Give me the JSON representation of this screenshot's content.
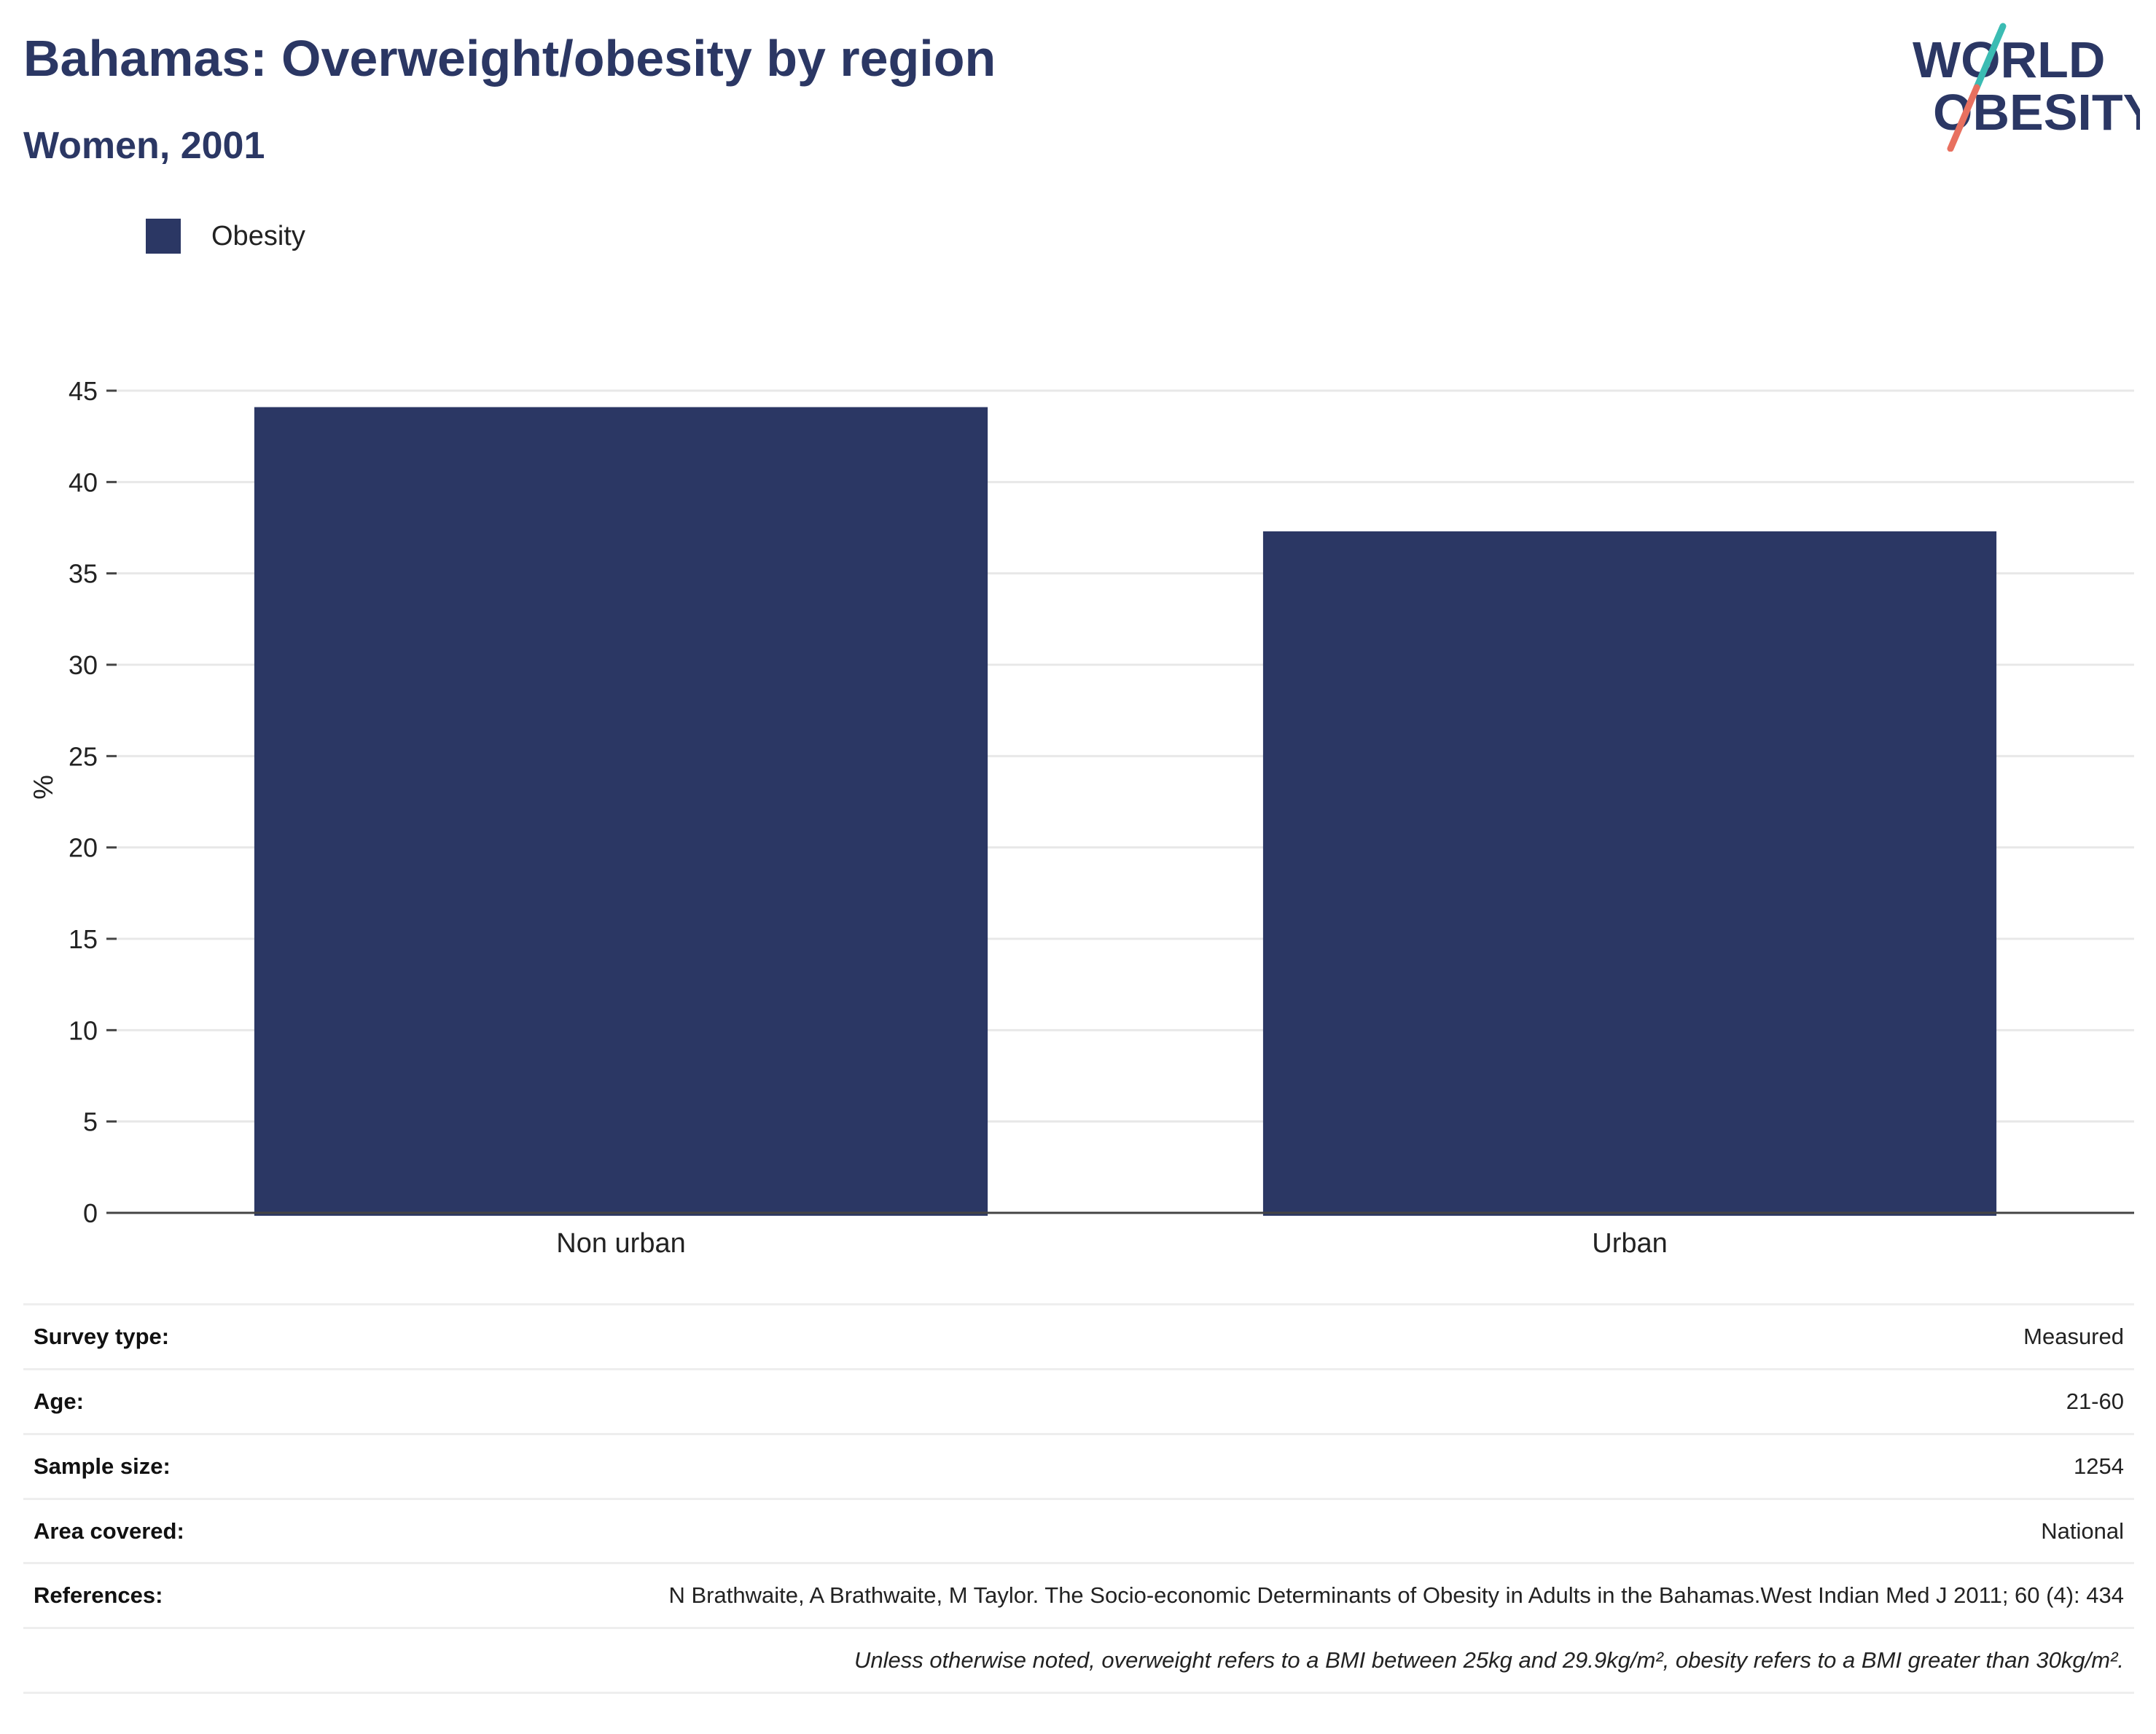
{
  "header": {
    "title": "Bahamas: Overweight/obesity by region",
    "subtitle": "Women, 2001"
  },
  "logo": {
    "line1": "WORLD",
    "line2": "OBESITY",
    "colors": {
      "text": "#2b3764",
      "slash_top": "#3bbcb3",
      "slash_bottom": "#e8705f"
    }
  },
  "legend": {
    "label": "Obesity",
    "color": "#2b3764"
  },
  "chart_data": {
    "type": "bar",
    "categories": [
      "Non urban",
      "Urban"
    ],
    "series": [
      {
        "name": "Obesity",
        "values": [
          44.1,
          37.3
        ],
        "color": "#2b3764"
      }
    ],
    "title": "Bahamas: Overweight/obesity by region",
    "subtitle": "Women, 2001",
    "xlabel": "",
    "ylabel": "%",
    "ylim": [
      0,
      45
    ],
    "yticks": [
      0,
      5,
      10,
      15,
      20,
      25,
      30,
      35,
      40,
      45
    ],
    "grid": true,
    "legend_position": "top-left"
  },
  "info": {
    "rows": [
      {
        "key": "Survey type:",
        "value": "Measured"
      },
      {
        "key": "Age:",
        "value": "21-60"
      },
      {
        "key": "Sample size:",
        "value": "1254"
      },
      {
        "key": "Area covered:",
        "value": "National"
      },
      {
        "key": "References:",
        "value": "N Brathwaite, A Brathwaite, M Taylor. The Socio-economic Determinants of Obesity in Adults in the Bahamas.West Indian Med J 2011; 60 (4): 434"
      }
    ],
    "note": "Unless otherwise noted, overweight refers to a BMI between 25kg and 29.9kg/m², obesity refers to a BMI greater than 30kg/m²."
  }
}
